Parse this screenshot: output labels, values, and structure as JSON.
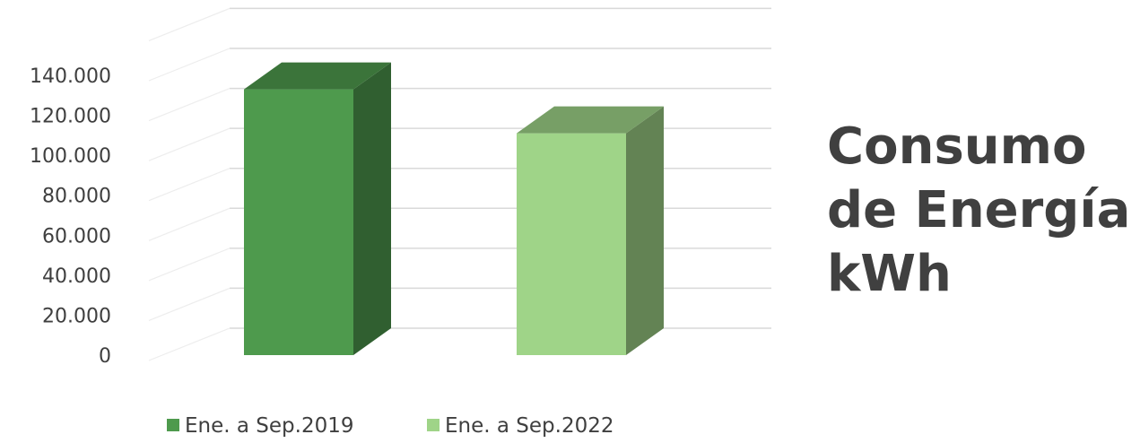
{
  "title": {
    "lines": [
      "Consumo",
      "de Energía",
      "kWh"
    ]
  },
  "chart_data": {
    "type": "bar",
    "style": "3d-column",
    "categories": [
      "Ene. a Sep.2019",
      "Ene. a Sep.2022"
    ],
    "values": [
      133000,
      111000
    ],
    "colors": [
      "#4e9a4d",
      "#9fd488"
    ],
    "ylim": [
      0,
      140000
    ],
    "yticks": [
      0,
      20000,
      40000,
      60000,
      80000,
      100000,
      120000,
      140000
    ],
    "ytick_labels": [
      "0",
      "20.000",
      "40.000",
      "60.000",
      "80.000",
      "100.000",
      "120.000",
      "140.000"
    ],
    "grid": true,
    "legend": {
      "placement": "bottom",
      "entries": [
        {
          "label": "Ene. a Sep.2019",
          "color": "#4e9a4d"
        },
        {
          "label": "Ene. a Sep.2022",
          "color": "#9fd488"
        }
      ]
    }
  }
}
